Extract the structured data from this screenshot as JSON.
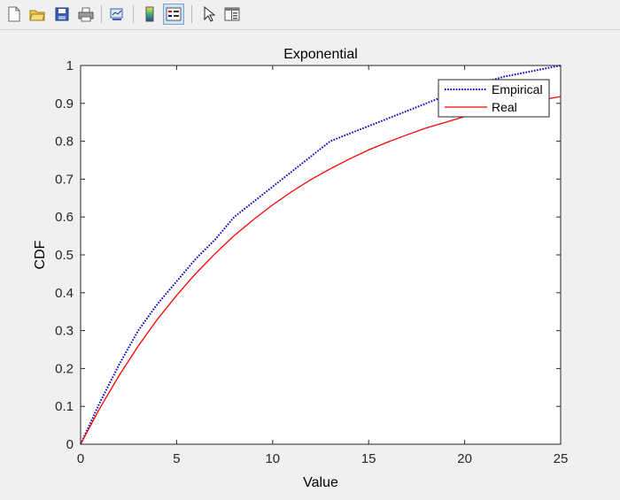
{
  "toolbar": {
    "buttons": [
      {
        "name": "new-figure-icon"
      },
      {
        "name": "open-file-icon"
      },
      {
        "name": "save-figure-icon"
      },
      {
        "name": "print-figure-icon"
      },
      {
        "name": "link-plot-icon"
      },
      {
        "name": "insert-colorbar-icon"
      },
      {
        "name": "insert-legend-icon"
      },
      {
        "name": "edit-plot-icon"
      },
      {
        "name": "property-inspector-icon"
      }
    ]
  },
  "chart_data": {
    "type": "line",
    "title": "Exponential",
    "xlabel": "Value",
    "ylabel": "CDF",
    "xlim": [
      0,
      25
    ],
    "ylim": [
      0,
      1
    ],
    "xticks": [
      "0",
      "5",
      "10",
      "15",
      "20",
      "25"
    ],
    "yticks": [
      "0",
      "0.1",
      "0.2",
      "0.3",
      "0.4",
      "0.5",
      "0.6",
      "0.7",
      "0.8",
      "0.9",
      "1"
    ],
    "grid": false,
    "legend": "top-right",
    "series": [
      {
        "name": "Empirical",
        "color": "#0000cc",
        "style": "dotted",
        "points": [
          [
            0,
            0
          ],
          [
            1,
            0.11
          ],
          [
            2,
            0.21
          ],
          [
            3,
            0.3
          ],
          [
            4,
            0.37
          ],
          [
            5,
            0.43
          ],
          [
            6,
            0.49
          ],
          [
            7,
            0.54
          ],
          [
            8,
            0.6
          ],
          [
            9,
            0.64
          ],
          [
            10,
            0.68
          ],
          [
            11,
            0.72
          ],
          [
            12,
            0.76
          ],
          [
            13,
            0.8
          ],
          [
            14,
            0.82
          ],
          [
            15,
            0.84
          ],
          [
            16,
            0.86
          ],
          [
            17,
            0.88
          ],
          [
            18,
            0.9
          ],
          [
            19,
            0.92
          ],
          [
            20,
            0.94
          ],
          [
            21,
            0.955
          ],
          [
            22,
            0.97
          ],
          [
            23,
            0.98
          ],
          [
            24,
            0.99
          ],
          [
            25,
            1.0
          ]
        ]
      },
      {
        "name": "Real",
        "color": "#ff0000",
        "style": "solid",
        "points": [
          [
            0,
            0
          ],
          [
            1,
            0.095
          ],
          [
            2,
            0.181
          ],
          [
            3,
            0.259
          ],
          [
            4,
            0.33
          ],
          [
            5,
            0.393
          ],
          [
            6,
            0.451
          ],
          [
            7,
            0.503
          ],
          [
            8,
            0.551
          ],
          [
            9,
            0.593
          ],
          [
            10,
            0.632
          ],
          [
            11,
            0.667
          ],
          [
            12,
            0.699
          ],
          [
            13,
            0.727
          ],
          [
            14,
            0.753
          ],
          [
            15,
            0.777
          ],
          [
            16,
            0.798
          ],
          [
            17,
            0.817
          ],
          [
            18,
            0.835
          ],
          [
            19,
            0.85
          ],
          [
            20,
            0.865
          ],
          [
            21,
            0.878
          ],
          [
            22,
            0.889
          ],
          [
            23,
            0.9
          ],
          [
            24,
            0.909
          ],
          [
            25,
            0.918
          ]
        ]
      }
    ]
  }
}
